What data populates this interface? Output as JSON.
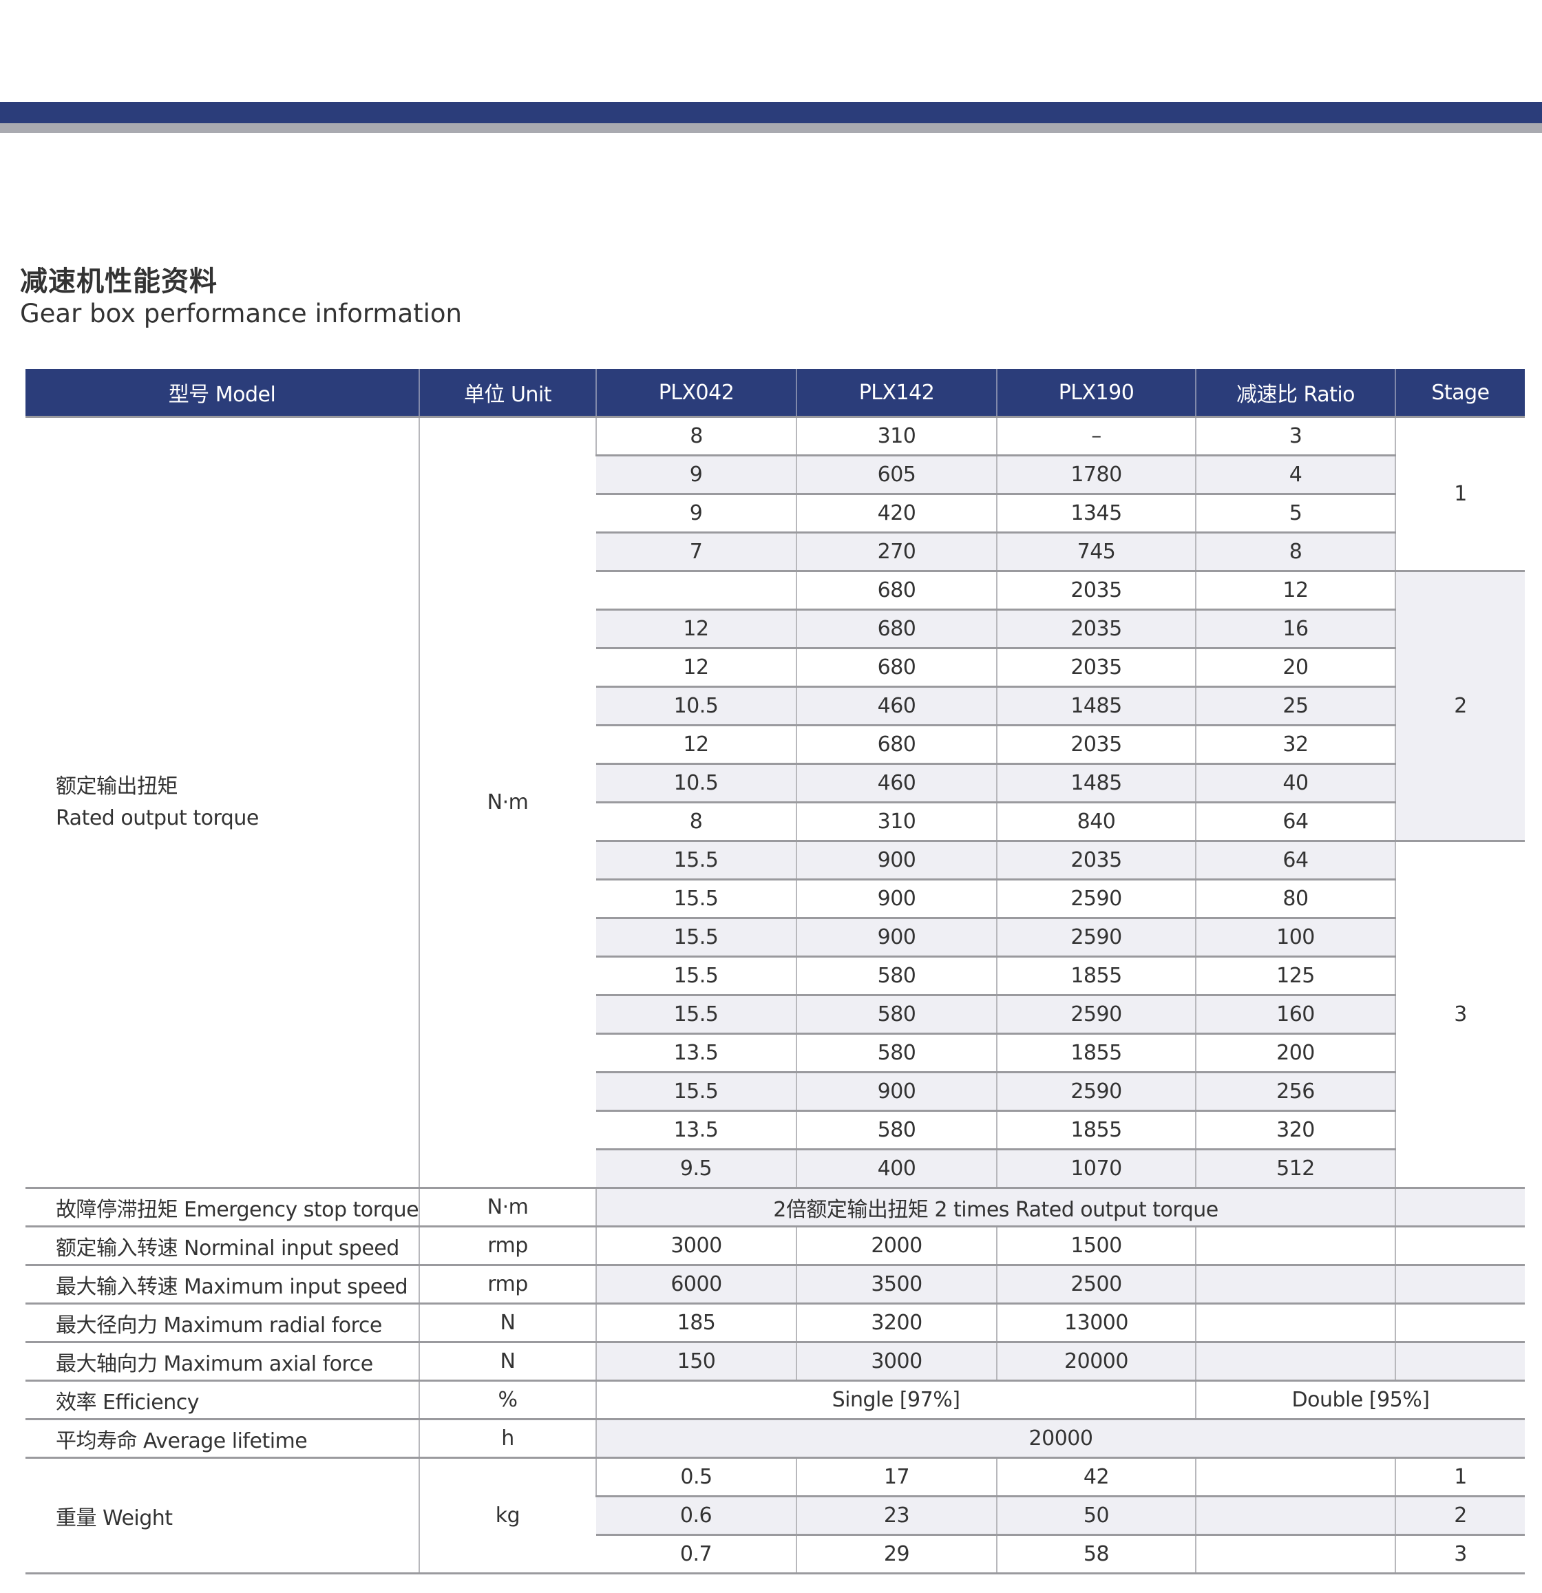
{
  "header": {
    "title_cn": "减速机性能资料",
    "title_en": "Gear box performance information"
  },
  "colors": {
    "brand_navy": "#2b3d7a",
    "band_gray": "#a9aab0",
    "row_shade": "#efeff4"
  },
  "table": {
    "columns": [
      "型号 Model",
      "单位 Unit",
      "PLX042",
      "PLX142",
      "PLX190",
      "减速比 Ratio",
      "Stage"
    ],
    "rated_torque": {
      "label_cn": "额定输出扭矩",
      "label_en": "Rated output torque",
      "unit": "N·m",
      "rows": [
        [
          "8",
          "310",
          "–",
          "3"
        ],
        [
          "9",
          "605",
          "1780",
          "4"
        ],
        [
          "9",
          "420",
          "1345",
          "5"
        ],
        [
          "7",
          "270",
          "745",
          "8"
        ],
        [
          "",
          "680",
          "2035",
          "12"
        ],
        [
          "12",
          "680",
          "2035",
          "16"
        ],
        [
          "12",
          "680",
          "2035",
          "20"
        ],
        [
          "10.5",
          "460",
          "1485",
          "25"
        ],
        [
          "12",
          "680",
          "2035",
          "32"
        ],
        [
          "10.5",
          "460",
          "1485",
          "40"
        ],
        [
          "8",
          "310",
          "840",
          "64"
        ],
        [
          "15.5",
          "900",
          "2035",
          "64"
        ],
        [
          "15.5",
          "900",
          "2590",
          "80"
        ],
        [
          "15.5",
          "900",
          "2590",
          "100"
        ],
        [
          "15.5",
          "580",
          "1855",
          "125"
        ],
        [
          "15.5",
          "580",
          "2590",
          "160"
        ],
        [
          "13.5",
          "580",
          "1855",
          "200"
        ],
        [
          "15.5",
          "900",
          "2590",
          "256"
        ],
        [
          "13.5",
          "580",
          "1855",
          "320"
        ],
        [
          "9.5",
          "400",
          "1070",
          "512"
        ]
      ],
      "stages": [
        {
          "label": "1",
          "rows": 4
        },
        {
          "label": "2",
          "rows": 7
        },
        {
          "label": "3",
          "rows": 9
        }
      ]
    },
    "emergency": {
      "label": "故障停滞扭矩 Emergency stop torque",
      "unit": "N·m",
      "value": "2倍额定输出扭矩  2 times Rated output torque"
    },
    "specs": [
      {
        "label": "额定输入转速 Norminal input speed",
        "unit": "rmp",
        "values": [
          "3000",
          "2000",
          "1500"
        ]
      },
      {
        "label": "最大输入转速 Maximum input speed",
        "unit": "rmp",
        "values": [
          "6000",
          "3500",
          "2500"
        ]
      },
      {
        "label": "最大径向力 Maximum radial force",
        "unit": "N",
        "values": [
          "185",
          "3200",
          "13000"
        ]
      },
      {
        "label": "最大轴向力 Maximum axial force",
        "unit": "N",
        "values": [
          "150",
          "3000",
          "20000"
        ]
      }
    ],
    "efficiency": {
      "label": "效率 Efficiency",
      "unit": "%",
      "single": "Single [97%]",
      "double": "Double [95%]"
    },
    "lifetime": {
      "label": "平均寿命 Average lifetime",
      "unit": "h",
      "value": "20000"
    },
    "weight": {
      "label": "重量 Weight",
      "unit": "kg",
      "rows": [
        {
          "values": [
            "0.5",
            "17",
            "42"
          ],
          "stage": "1"
        },
        {
          "values": [
            "0.6",
            "23",
            "50"
          ],
          "stage": "2"
        },
        {
          "values": [
            "0.7",
            "29",
            "58"
          ],
          "stage": "3"
        }
      ]
    }
  }
}
